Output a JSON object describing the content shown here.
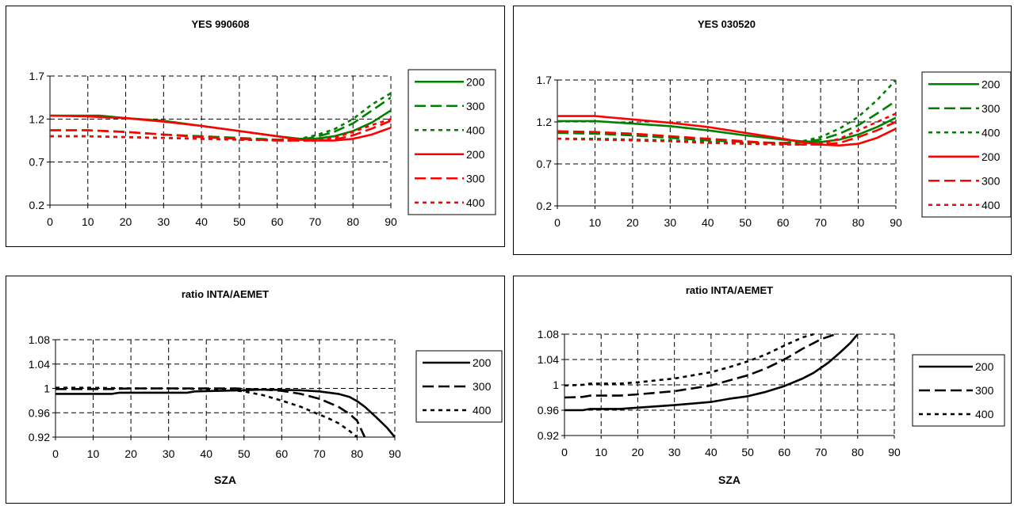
{
  "chart_data": [
    {
      "type": "line",
      "title": "YES 990608",
      "xlabel": "",
      "ylabel": "",
      "xlim": [
        0,
        90
      ],
      "ylim": [
        0.2,
        1.7
      ],
      "xticks": [
        "0",
        "10",
        "20",
        "30",
        "40",
        "50",
        "60",
        "70",
        "80",
        "90"
      ],
      "yticks": [
        "0.2",
        "0.7",
        "1.2",
        "1.7"
      ],
      "grid": true,
      "legend_position": "right",
      "series": [
        {
          "name": "200",
          "color": "#008000",
          "dash": "solid",
          "x": [
            0,
            13,
            20,
            30,
            40,
            50,
            60,
            66,
            70,
            75,
            80,
            85,
            90
          ],
          "y": [
            1.24,
            1.24,
            1.21,
            1.18,
            1.12,
            1.06,
            1.0,
            0.97,
            0.97,
            1.0,
            1.06,
            1.16,
            1.3
          ]
        },
        {
          "name": "300",
          "color": "#008000",
          "dash": "long",
          "x": [
            0,
            10,
            20,
            30,
            40,
            50,
            60,
            66,
            70,
            75,
            80,
            85,
            90
          ],
          "y": [
            1.07,
            1.07,
            1.05,
            1.02,
            1.0,
            0.98,
            0.96,
            0.96,
            0.99,
            1.05,
            1.15,
            1.3,
            1.45
          ]
        },
        {
          "name": "400",
          "color": "#008000",
          "dash": "short",
          "x": [
            0,
            10,
            20,
            30,
            40,
            50,
            60,
            66,
            70,
            75,
            80,
            85,
            90
          ],
          "y": [
            1.0,
            1.0,
            0.99,
            0.98,
            0.97,
            0.96,
            0.96,
            0.97,
            1.01,
            1.08,
            1.2,
            1.37,
            1.5
          ]
        },
        {
          "name": "200",
          "color": "#ff0000",
          "dash": "solid",
          "x": [
            0,
            10,
            20,
            30,
            40,
            50,
            60,
            66,
            70,
            75,
            80,
            85,
            90
          ],
          "y": [
            1.24,
            1.23,
            1.21,
            1.17,
            1.12,
            1.06,
            1.0,
            0.96,
            0.95,
            0.95,
            0.97,
            1.02,
            1.1
          ]
        },
        {
          "name": "300",
          "color": "#ff0000",
          "dash": "long",
          "x": [
            0,
            10,
            20,
            30,
            40,
            50,
            60,
            66,
            70,
            75,
            80,
            85,
            90
          ],
          "y": [
            1.07,
            1.07,
            1.05,
            1.02,
            0.99,
            0.97,
            0.95,
            0.95,
            0.95,
            0.96,
            1.01,
            1.09,
            1.18
          ]
        },
        {
          "name": "400",
          "color": "#ff0000",
          "dash": "short",
          "x": [
            0,
            10,
            20,
            30,
            40,
            50,
            60,
            66,
            70,
            75,
            80,
            85,
            90
          ],
          "y": [
            1.0,
            1.0,
            0.99,
            0.98,
            0.97,
            0.96,
            0.95,
            0.95,
            0.95,
            0.98,
            1.05,
            1.13,
            1.2
          ]
        }
      ]
    },
    {
      "type": "line",
      "title": "YES 030520",
      "xlabel": "",
      "ylabel": "",
      "xlim": [
        0,
        90
      ],
      "ylim": [
        0.2,
        1.7
      ],
      "xticks": [
        "0",
        "10",
        "20",
        "30",
        "40",
        "50",
        "60",
        "70",
        "80",
        "90"
      ],
      "yticks": [
        "0.2",
        "0.7",
        "1.2",
        "1.7"
      ],
      "grid": true,
      "legend_position": "right",
      "series": [
        {
          "name": "200",
          "color": "#008000",
          "dash": "solid",
          "x": [
            0,
            10,
            20,
            30,
            40,
            50,
            60,
            65,
            70,
            75,
            80,
            85,
            90
          ],
          "y": [
            1.21,
            1.21,
            1.18,
            1.15,
            1.1,
            1.04,
            0.99,
            0.97,
            0.96,
            0.99,
            1.05,
            1.14,
            1.25
          ]
        },
        {
          "name": "300",
          "color": "#008000",
          "dash": "long",
          "x": [
            0,
            10,
            20,
            30,
            40,
            50,
            60,
            65,
            70,
            75,
            80,
            85,
            90
          ],
          "y": [
            1.07,
            1.06,
            1.04,
            1.01,
            0.98,
            0.96,
            0.95,
            0.96,
            0.99,
            1.06,
            1.16,
            1.3,
            1.45
          ]
        },
        {
          "name": "400",
          "color": "#008000",
          "dash": "short",
          "x": [
            0,
            10,
            20,
            30,
            40,
            50,
            60,
            65,
            70,
            75,
            80,
            85,
            90
          ],
          "y": [
            1.0,
            1.0,
            0.99,
            0.98,
            0.96,
            0.95,
            0.95,
            0.97,
            1.02,
            1.12,
            1.26,
            1.46,
            1.7
          ]
        },
        {
          "name": "200",
          "color": "#ff0000",
          "dash": "solid",
          "x": [
            0,
            10,
            20,
            30,
            40,
            50,
            60,
            65,
            70,
            75,
            80,
            85,
            90
          ],
          "y": [
            1.27,
            1.27,
            1.23,
            1.19,
            1.14,
            1.07,
            1.0,
            0.96,
            0.93,
            0.92,
            0.94,
            1.01,
            1.12
          ]
        },
        {
          "name": "300",
          "color": "#ff0000",
          "dash": "long",
          "x": [
            0,
            10,
            20,
            30,
            40,
            50,
            60,
            65,
            70,
            75,
            80,
            85,
            90
          ],
          "y": [
            1.09,
            1.08,
            1.06,
            1.03,
            1.0,
            0.97,
            0.94,
            0.93,
            0.93,
            0.95,
            1.02,
            1.1,
            1.2
          ]
        },
        {
          "name": "400",
          "color": "#ff0000",
          "dash": "short",
          "x": [
            0,
            10,
            20,
            30,
            40,
            50,
            60,
            65,
            70,
            75,
            80,
            85,
            90
          ],
          "y": [
            1.0,
            0.99,
            0.98,
            0.97,
            0.95,
            0.94,
            0.93,
            0.93,
            0.94,
            1.0,
            1.1,
            1.2,
            1.3
          ]
        }
      ]
    },
    {
      "type": "line",
      "title": "ratio INTA/AEMET",
      "xlabel": "SZA",
      "ylabel": "",
      "xlim": [
        0,
        90
      ],
      "ylim": [
        0.92,
        1.08
      ],
      "xticks": [
        "0",
        "10",
        "20",
        "30",
        "40",
        "50",
        "60",
        "70",
        "80",
        "90"
      ],
      "yticks": [
        "0.92",
        "0.96",
        "1",
        "1.04",
        "1.08"
      ],
      "grid": true,
      "legend_position": "right",
      "series": [
        {
          "name": "200",
          "color": "#000000",
          "dash": "solid",
          "x": [
            0,
            15,
            17,
            35,
            37,
            50,
            55,
            65,
            70,
            75,
            78,
            80,
            82,
            85,
            88,
            90
          ],
          "y": [
            0.991,
            0.991,
            0.993,
            0.993,
            0.995,
            0.997,
            0.998,
            0.997,
            0.995,
            0.991,
            0.986,
            0.979,
            0.97,
            0.953,
            0.935,
            0.92
          ]
        },
        {
          "name": "300",
          "color": "#000000",
          "dash": "long",
          "x": [
            0,
            15,
            20,
            30,
            40,
            48,
            50,
            55,
            60,
            65,
            70,
            75,
            78,
            80,
            82
          ],
          "y": [
            0.999,
            0.999,
            1.0,
            1.0,
            1.0,
            1.0,
            0.999,
            0.998,
            0.996,
            0.991,
            0.983,
            0.97,
            0.958,
            0.947,
            0.92
          ]
        },
        {
          "name": "400",
          "color": "#000000",
          "dash": "short",
          "x": [
            0,
            10,
            20,
            30,
            40,
            45,
            50,
            55,
            60,
            65,
            70,
            72,
            75,
            78,
            80
          ],
          "y": [
            1.001,
            1.001,
            1.0,
            1.0,
            0.999,
            0.998,
            0.995,
            0.989,
            0.98,
            0.97,
            0.957,
            0.952,
            0.943,
            0.93,
            0.92
          ]
        }
      ]
    },
    {
      "type": "line",
      "title": "ratio INTA/AEMET",
      "xlabel": "SZA",
      "ylabel": "",
      "xlim": [
        0,
        90
      ],
      "ylim": [
        0.92,
        1.08
      ],
      "xticks": [
        "0",
        "10",
        "20",
        "30",
        "40",
        "50",
        "60",
        "70",
        "80",
        "90"
      ],
      "yticks": [
        "0.92",
        "0.96",
        "1",
        "1.04",
        "1.08"
      ],
      "grid": true,
      "legend_position": "right",
      "series": [
        {
          "name": "200",
          "color": "#000000",
          "dash": "solid",
          "x": [
            0,
            5,
            7,
            15,
            20,
            30,
            40,
            45,
            50,
            55,
            60,
            65,
            68,
            72,
            75,
            78,
            80
          ],
          "y": [
            0.96,
            0.96,
            0.962,
            0.962,
            0.964,
            0.968,
            0.973,
            0.978,
            0.982,
            0.989,
            0.998,
            1.01,
            1.019,
            1.035,
            1.05,
            1.066,
            1.08
          ]
        },
        {
          "name": "300",
          "color": "#000000",
          "dash": "long",
          "x": [
            0,
            5,
            7,
            15,
            20,
            30,
            40,
            45,
            50,
            55,
            60,
            65,
            70,
            74
          ],
          "y": [
            0.98,
            0.981,
            0.983,
            0.983,
            0.985,
            0.99,
            0.999,
            1.007,
            1.015,
            1.026,
            1.04,
            1.057,
            1.072,
            1.08
          ]
        },
        {
          "name": "400",
          "color": "#000000",
          "dash": "short",
          "x": [
            0,
            5,
            7,
            15,
            20,
            30,
            40,
            45,
            50,
            55,
            60,
            65,
            68
          ],
          "y": [
            0.999,
            1.0,
            1.002,
            1.002,
            1.004,
            1.01,
            1.02,
            1.028,
            1.037,
            1.048,
            1.062,
            1.075,
            1.08
          ]
        }
      ]
    }
  ]
}
